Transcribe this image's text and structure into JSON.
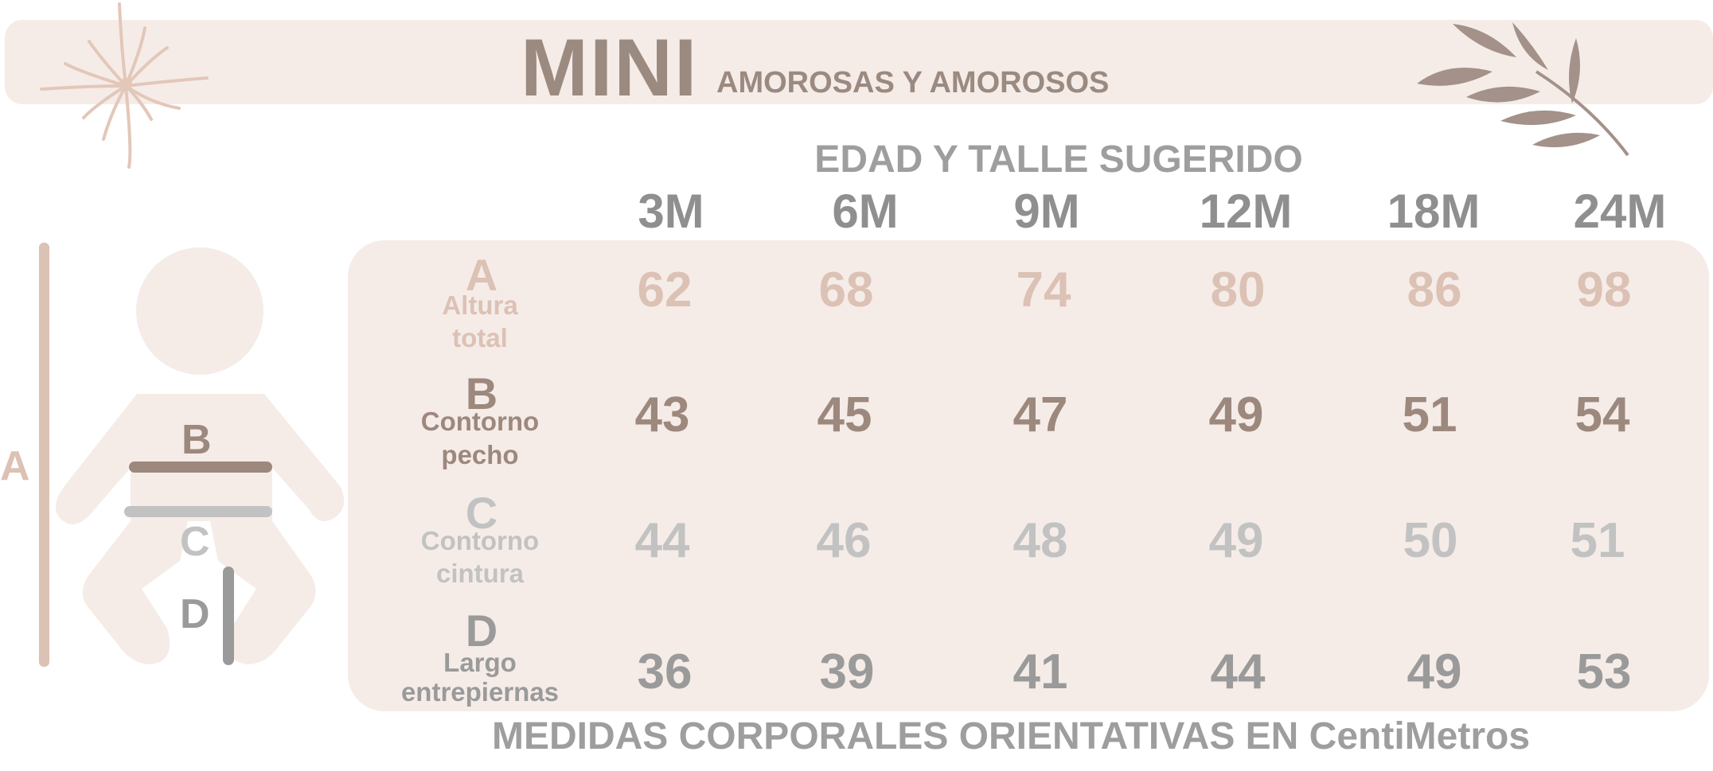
{
  "header": {
    "brand": "MINI",
    "subtitle": "AMOROSAS Y AMOROSOS"
  },
  "table": {
    "title": "EDAD Y TALLE SUGERIDO",
    "sizes": [
      "3M",
      "6M",
      "9M",
      "12M",
      "18M",
      "24M"
    ],
    "rows": [
      {
        "letter": "A",
        "label_line1": "Altura",
        "label_line2": "total",
        "values": [
          "62",
          "68",
          "74",
          "80",
          "86",
          "98"
        ]
      },
      {
        "letter": "B",
        "label_line1": "Contorno",
        "label_line2": "pecho",
        "values": [
          "43",
          "45",
          "47",
          "49",
          "51",
          "54"
        ]
      },
      {
        "letter": "C",
        "label_line1": "Contorno",
        "label_line2": "cintura",
        "values": [
          "44",
          "46",
          "48",
          "49",
          "50",
          "51"
        ]
      },
      {
        "letter": "D",
        "label_line1": "Largo",
        "label_line2": "entrepiernas",
        "values": [
          "36",
          "39",
          "41",
          "44",
          "49",
          "53"
        ]
      }
    ],
    "footer": "MEDIDAS CORPORALES ORIENTATIVAS EN CentiMetros"
  },
  "figure": {
    "label_a": "A",
    "label_b": "B",
    "label_c": "C",
    "label_d": "D"
  },
  "colors": {
    "banner": "#f5ece8",
    "row_a": "#dcc1b5",
    "row_b": "#9d887e",
    "row_c": "#c2c2c2",
    "row_d": "#9a9a9a"
  }
}
